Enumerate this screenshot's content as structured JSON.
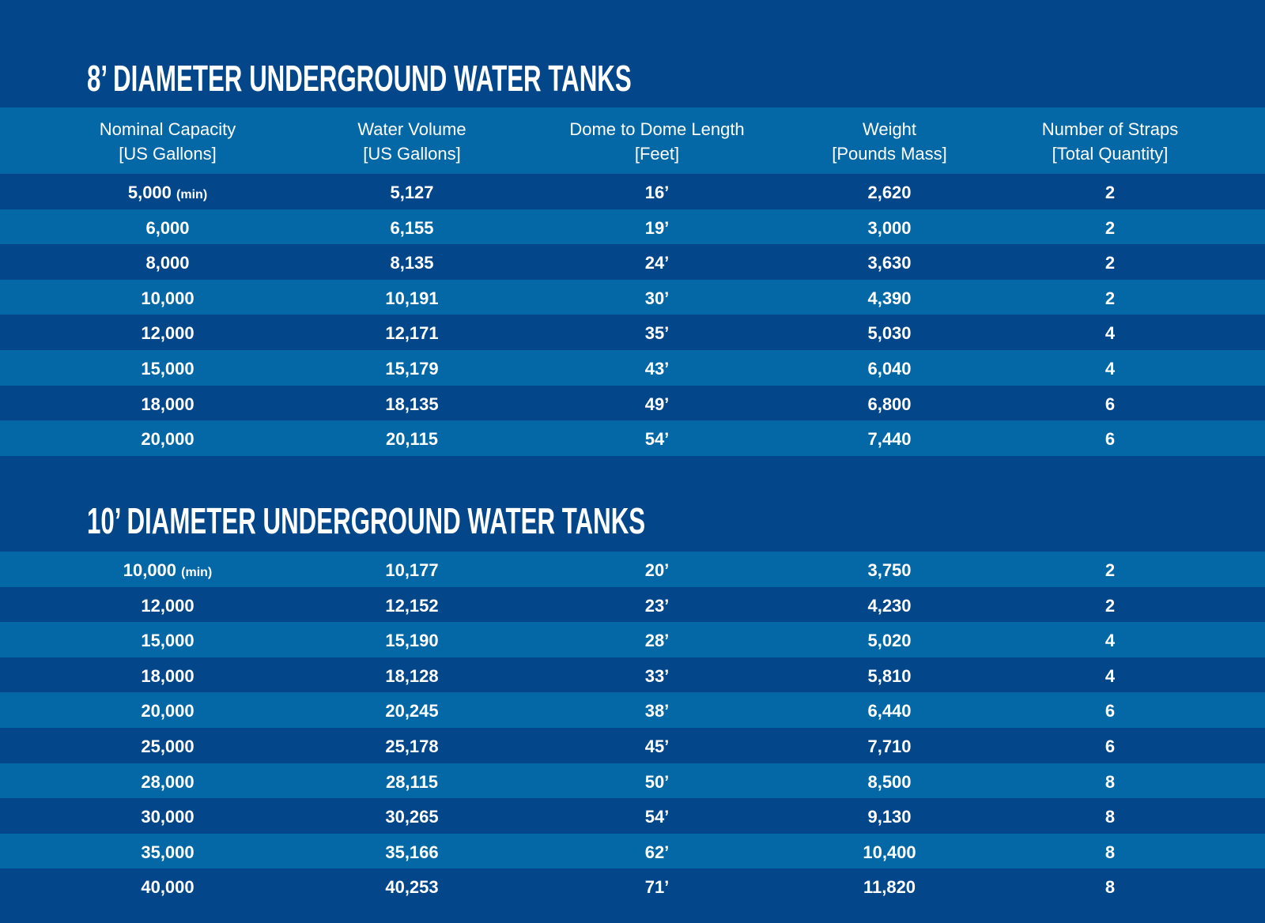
{
  "colors": {
    "dark": "#03468a",
    "light": "#0568a6",
    "text": "#ffffff"
  },
  "headers": [
    {
      "line1": "Nominal Capacity",
      "line2": "[US Gallons]"
    },
    {
      "line1": "Water Volume",
      "line2": "[US Gallons]"
    },
    {
      "line1": "Dome to Dome Length",
      "line2": "[Feet]"
    },
    {
      "line1": "Weight",
      "line2": "[Pounds Mass]"
    },
    {
      "line1": "Number of Straps",
      "line2": "[Total Quantity]"
    }
  ],
  "section1": {
    "title": "8’ DIAMETER UNDERGROUND WATER TANKS",
    "rows": [
      {
        "capacity": "5,000",
        "note": "(min)",
        "volume": "5,127",
        "length": "16’",
        "weight": "2,620",
        "straps": "2"
      },
      {
        "capacity": "6,000",
        "note": "",
        "volume": "6,155",
        "length": "19’",
        "weight": "3,000",
        "straps": "2"
      },
      {
        "capacity": "8,000",
        "note": "",
        "volume": "8,135",
        "length": "24’",
        "weight": "3,630",
        "straps": "2"
      },
      {
        "capacity": "10,000",
        "note": "",
        "volume": "10,191",
        "length": "30’",
        "weight": "4,390",
        "straps": "2"
      },
      {
        "capacity": "12,000",
        "note": "",
        "volume": "12,171",
        "length": "35’",
        "weight": "5,030",
        "straps": "4"
      },
      {
        "capacity": "15,000",
        "note": "",
        "volume": "15,179",
        "length": "43’",
        "weight": "6,040",
        "straps": "4"
      },
      {
        "capacity": "18,000",
        "note": "",
        "volume": "18,135",
        "length": "49’",
        "weight": "6,800",
        "straps": "6"
      },
      {
        "capacity": "20,000",
        "note": "",
        "volume": "20,115",
        "length": "54’",
        "weight": "7,440",
        "straps": "6"
      }
    ]
  },
  "section2": {
    "title": "10’ DIAMETER UNDERGROUND WATER TANKS",
    "rows": [
      {
        "capacity": "10,000",
        "note": "(min)",
        "volume": "10,177",
        "length": "20’",
        "weight": "3,750",
        "straps": "2"
      },
      {
        "capacity": "12,000",
        "note": "",
        "volume": "12,152",
        "length": "23’",
        "weight": "4,230",
        "straps": "2"
      },
      {
        "capacity": "15,000",
        "note": "",
        "volume": "15,190",
        "length": "28’",
        "weight": "5,020",
        "straps": "4"
      },
      {
        "capacity": "18,000",
        "note": "",
        "volume": "18,128",
        "length": "33’",
        "weight": "5,810",
        "straps": "4"
      },
      {
        "capacity": "20,000",
        "note": "",
        "volume": "20,245",
        "length": "38’",
        "weight": "6,440",
        "straps": "6"
      },
      {
        "capacity": "25,000",
        "note": "",
        "volume": "25,178",
        "length": "45’",
        "weight": "7,710",
        "straps": "6"
      },
      {
        "capacity": "28,000",
        "note": "",
        "volume": "28,115",
        "length": "50’",
        "weight": "8,500",
        "straps": "8"
      },
      {
        "capacity": "30,000",
        "note": "",
        "volume": "30,265",
        "length": "54’",
        "weight": "9,130",
        "straps": "8"
      },
      {
        "capacity": "35,000",
        "note": "",
        "volume": "35,166",
        "length": "62’",
        "weight": "10,400",
        "straps": "8"
      },
      {
        "capacity": "40,000",
        "note": "",
        "volume": "40,253",
        "length": "71’",
        "weight": "11,820",
        "straps": "8"
      }
    ]
  }
}
